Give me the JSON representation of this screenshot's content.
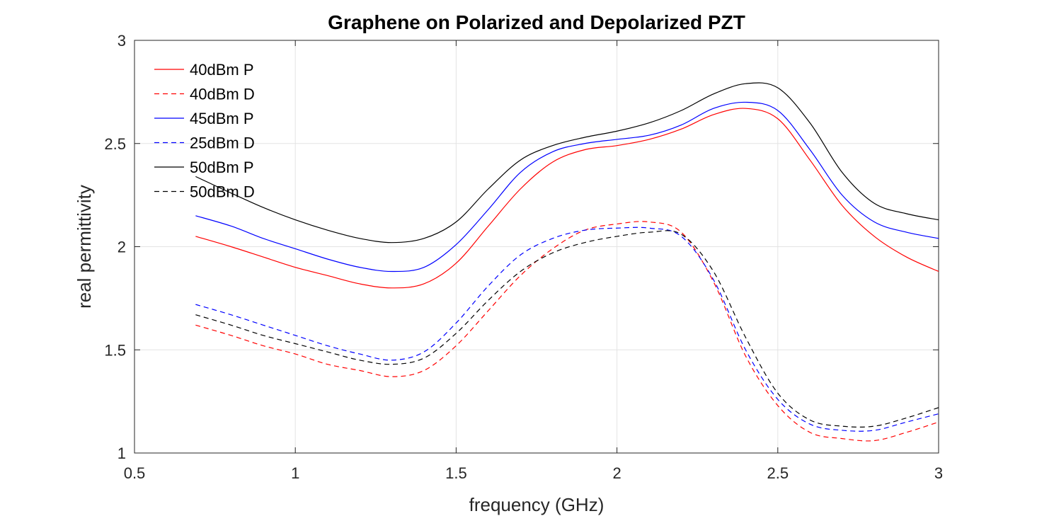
{
  "chart_data": {
    "type": "line",
    "title": "Graphene on Polarized and Depolarized PZT",
    "xlabel": "frequency (GHz)",
    "ylabel": "real permittivity",
    "xlim": [
      0.5,
      3
    ],
    "ylim": [
      1,
      3
    ],
    "x_ticks": [
      "0.5",
      "1",
      "1.5",
      "2",
      "2.5",
      "3"
    ],
    "y_ticks": [
      "1",
      "1.5",
      "2",
      "2.5",
      "3"
    ],
    "grid": true,
    "legend_position": "top-left",
    "x": [
      0.69,
      0.8,
      0.9,
      1.0,
      1.1,
      1.2,
      1.3,
      1.4,
      1.5,
      1.6,
      1.7,
      1.8,
      1.9,
      2.0,
      2.1,
      2.2,
      2.3,
      2.4,
      2.5,
      2.6,
      2.7,
      2.8,
      2.9,
      3.0
    ],
    "series": [
      {
        "name": "40dBm P",
        "color": "#ff0000",
        "dash": false,
        "values": [
          2.05,
          2.0,
          1.95,
          1.9,
          1.86,
          1.82,
          1.8,
          1.82,
          1.92,
          2.1,
          2.28,
          2.41,
          2.47,
          2.49,
          2.52,
          2.57,
          2.64,
          2.67,
          2.62,
          2.42,
          2.2,
          2.05,
          1.95,
          1.88
        ]
      },
      {
        "name": "40dBm D",
        "color": "#ff0000",
        "dash": true,
        "values": [
          1.62,
          1.57,
          1.52,
          1.48,
          1.43,
          1.4,
          1.37,
          1.4,
          1.52,
          1.69,
          1.86,
          1.99,
          2.08,
          2.11,
          2.12,
          2.07,
          1.83,
          1.47,
          1.23,
          1.1,
          1.07,
          1.06,
          1.1,
          1.15
        ]
      },
      {
        "name": "45dBm P",
        "color": "#0000ff",
        "dash": false,
        "values": [
          2.15,
          2.1,
          2.04,
          1.99,
          1.94,
          1.9,
          1.88,
          1.9,
          2.01,
          2.18,
          2.36,
          2.46,
          2.5,
          2.52,
          2.54,
          2.59,
          2.67,
          2.7,
          2.66,
          2.47,
          2.25,
          2.12,
          2.07,
          2.04
        ]
      },
      {
        "name": "25dBm D",
        "color": "#0000ff",
        "dash": true,
        "values": [
          1.72,
          1.67,
          1.62,
          1.57,
          1.52,
          1.48,
          1.45,
          1.49,
          1.63,
          1.81,
          1.96,
          2.04,
          2.08,
          2.09,
          2.09,
          2.05,
          1.84,
          1.5,
          1.26,
          1.14,
          1.11,
          1.11,
          1.15,
          1.19
        ]
      },
      {
        "name": "50dBm P",
        "color": "#000000",
        "dash": false,
        "values": [
          2.34,
          2.26,
          2.19,
          2.13,
          2.08,
          2.04,
          2.02,
          2.04,
          2.12,
          2.28,
          2.42,
          2.49,
          2.53,
          2.56,
          2.6,
          2.66,
          2.74,
          2.79,
          2.77,
          2.6,
          2.36,
          2.21,
          2.16,
          2.13
        ]
      },
      {
        "name": "50dBm D",
        "color": "#000000",
        "dash": true,
        "values": [
          1.67,
          1.62,
          1.57,
          1.53,
          1.49,
          1.45,
          1.43,
          1.46,
          1.58,
          1.74,
          1.88,
          1.97,
          2.02,
          2.05,
          2.07,
          2.06,
          1.88,
          1.56,
          1.29,
          1.16,
          1.13,
          1.13,
          1.17,
          1.22
        ]
      }
    ]
  }
}
